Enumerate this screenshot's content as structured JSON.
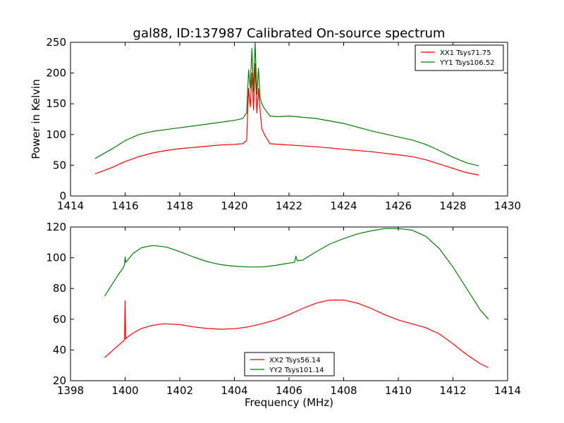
{
  "chart_data": [
    {
      "type": "line",
      "title": "gal88, ID:137987 Calibrated On-source spectrum",
      "xlabel": "",
      "ylabel": "Power in Kelvin",
      "xlim": [
        1414,
        1430
      ],
      "ylim": [
        0,
        250
      ],
      "xticks": [
        "1414",
        "1416",
        "1418",
        "1420",
        "1422",
        "1424",
        "1426",
        "1428",
        "1430"
      ],
      "yticks": [
        "0",
        "50",
        "100",
        "150",
        "200",
        "250"
      ],
      "legend": "top-right",
      "grid": false,
      "series": [
        {
          "name": "XX1 Tsys71.75",
          "color": "#ff0000",
          "x": [
            1414.9,
            1415.5,
            1416,
            1416.5,
            1417,
            1417.5,
            1418,
            1418.5,
            1419,
            1419.5,
            1420,
            1420.3,
            1420.45,
            1420.52,
            1420.58,
            1420.64,
            1420.7,
            1420.76,
            1420.82,
            1420.88,
            1420.94,
            1421.0,
            1421.1,
            1421.3,
            1422,
            1423,
            1424,
            1425,
            1426,
            1426.5,
            1427,
            1427.5,
            1428,
            1428.5,
            1428.95
          ],
          "y": [
            36,
            46,
            56,
            64,
            70,
            74,
            77,
            79,
            81,
            83,
            84,
            85,
            90,
            175,
            145,
            200,
            140,
            215,
            135,
            175,
            140,
            110,
            100,
            85,
            83,
            80,
            76,
            72,
            67,
            64,
            59,
            52,
            45,
            38,
            34
          ]
        },
        {
          "name": "YY1 Tsys106.52",
          "color": "#008000",
          "x": [
            1414.9,
            1415.5,
            1416,
            1416.5,
            1417,
            1417.5,
            1418,
            1418.5,
            1419,
            1419.5,
            1420,
            1420.3,
            1420.45,
            1420.52,
            1420.58,
            1420.64,
            1420.7,
            1420.76,
            1420.82,
            1420.88,
            1420.94,
            1421.0,
            1421.1,
            1421.3,
            1421.6,
            1422,
            1423,
            1424,
            1425,
            1426,
            1426.5,
            1427,
            1427.5,
            1428,
            1428.5,
            1428.95
          ],
          "y": [
            61,
            76,
            90,
            100,
            105,
            108,
            111,
            114,
            117,
            120,
            123,
            126,
            135,
            205,
            175,
            240,
            170,
            250,
            165,
            208,
            160,
            150,
            142,
            130,
            129,
            130,
            126,
            118,
            106,
            96,
            91,
            84,
            74,
            63,
            54,
            49
          ]
        }
      ]
    },
    {
      "type": "line",
      "title": "",
      "xlabel": "Frequency (MHz)",
      "ylabel": "",
      "xlim": [
        1398,
        1414
      ],
      "ylim": [
        20,
        120
      ],
      "xticks": [
        "1398",
        "1400",
        "1402",
        "1404",
        "1406",
        "1408",
        "1410",
        "1412",
        "1414"
      ],
      "yticks": [
        "20",
        "40",
        "60",
        "80",
        "100",
        "120"
      ],
      "legend": "bottom-center",
      "grid": false,
      "series": [
        {
          "name": "XX2 Tsys56.14",
          "color": "#ff0000",
          "x": [
            1399.25,
            1399.5,
            1399.75,
            1399.95,
            1399.98,
            1400.0,
            1400.02,
            1400.05,
            1400.3,
            1400.6,
            1401,
            1401.4,
            1402,
            1402.5,
            1403,
            1403.5,
            1404,
            1404.5,
            1405,
            1405.5,
            1406,
            1406.5,
            1407,
            1407.5,
            1408,
            1408.5,
            1409,
            1409.5,
            1410,
            1410.5,
            1411,
            1411.5,
            1412,
            1412.5,
            1413,
            1413.3
          ],
          "y": [
            35,
            39,
            43,
            46,
            47,
            72,
            47,
            48,
            51,
            54,
            56,
            57,
            56.5,
            55,
            54,
            53.5,
            53.8,
            55,
            57,
            59.5,
            63,
            67,
            70.5,
            72.5,
            72.5,
            70.5,
            67,
            63,
            59.5,
            57,
            54.5,
            50.5,
            44,
            37,
            31,
            28.5
          ]
        },
        {
          "name": "YY2 Tsys101.14",
          "color": "#008000",
          "x": [
            1399.25,
            1399.5,
            1399.75,
            1399.95,
            1399.98,
            1400.0,
            1400.02,
            1400.05,
            1400.3,
            1400.6,
            1401,
            1401.5,
            1402,
            1402.5,
            1403,
            1403.5,
            1404,
            1404.5,
            1405,
            1405.5,
            1406,
            1406.2,
            1406.25,
            1406.3,
            1406.5,
            1407,
            1407.5,
            1408,
            1408.5,
            1409,
            1409.5,
            1410,
            1410.5,
            1411,
            1411.5,
            1412,
            1412.5,
            1413,
            1413.3
          ],
          "y": [
            75,
            82,
            89,
            94,
            96,
            100.5,
            97,
            97.5,
            103,
            106.5,
            108,
            107,
            104,
            100.5,
            97.5,
            95.5,
            94.5,
            94,
            94,
            95,
            96.5,
            97,
            101,
            98,
            98.5,
            104,
            109,
            112.5,
            115.5,
            117.5,
            119,
            119,
            118,
            114,
            106,
            94,
            80,
            66,
            60
          ]
        }
      ]
    }
  ]
}
